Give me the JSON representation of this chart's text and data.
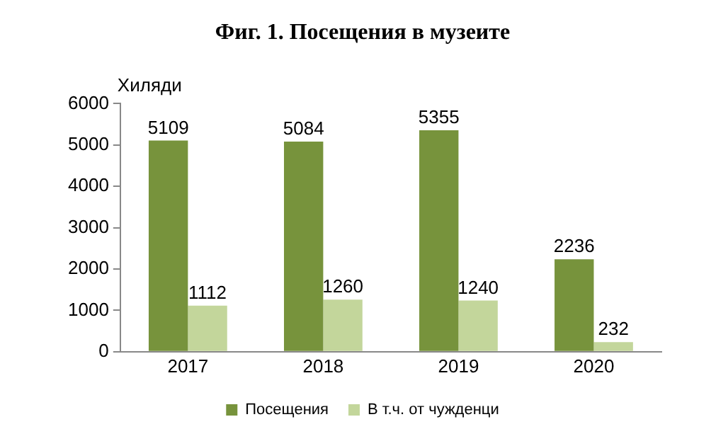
{
  "chart_data": {
    "type": "bar",
    "title": "Фиг. 1. Посещения в музеите",
    "ylabel": "Хиляди",
    "categories": [
      "2017",
      "2018",
      "2019",
      "2020"
    ],
    "series": [
      {
        "name": "Посещения",
        "color": "#77933c",
        "values": [
          5109,
          5084,
          5355,
          2236
        ]
      },
      {
        "name": "В т.ч. от чужденци",
        "color": "#c3d69b",
        "values": [
          1112,
          1260,
          1240,
          232
        ]
      }
    ],
    "ylim": [
      0,
      6000
    ],
    "yticks": [
      0,
      1000,
      2000,
      3000,
      4000,
      5000,
      6000
    ],
    "grid": false,
    "legend": "bottom",
    "data_labels": true
  }
}
